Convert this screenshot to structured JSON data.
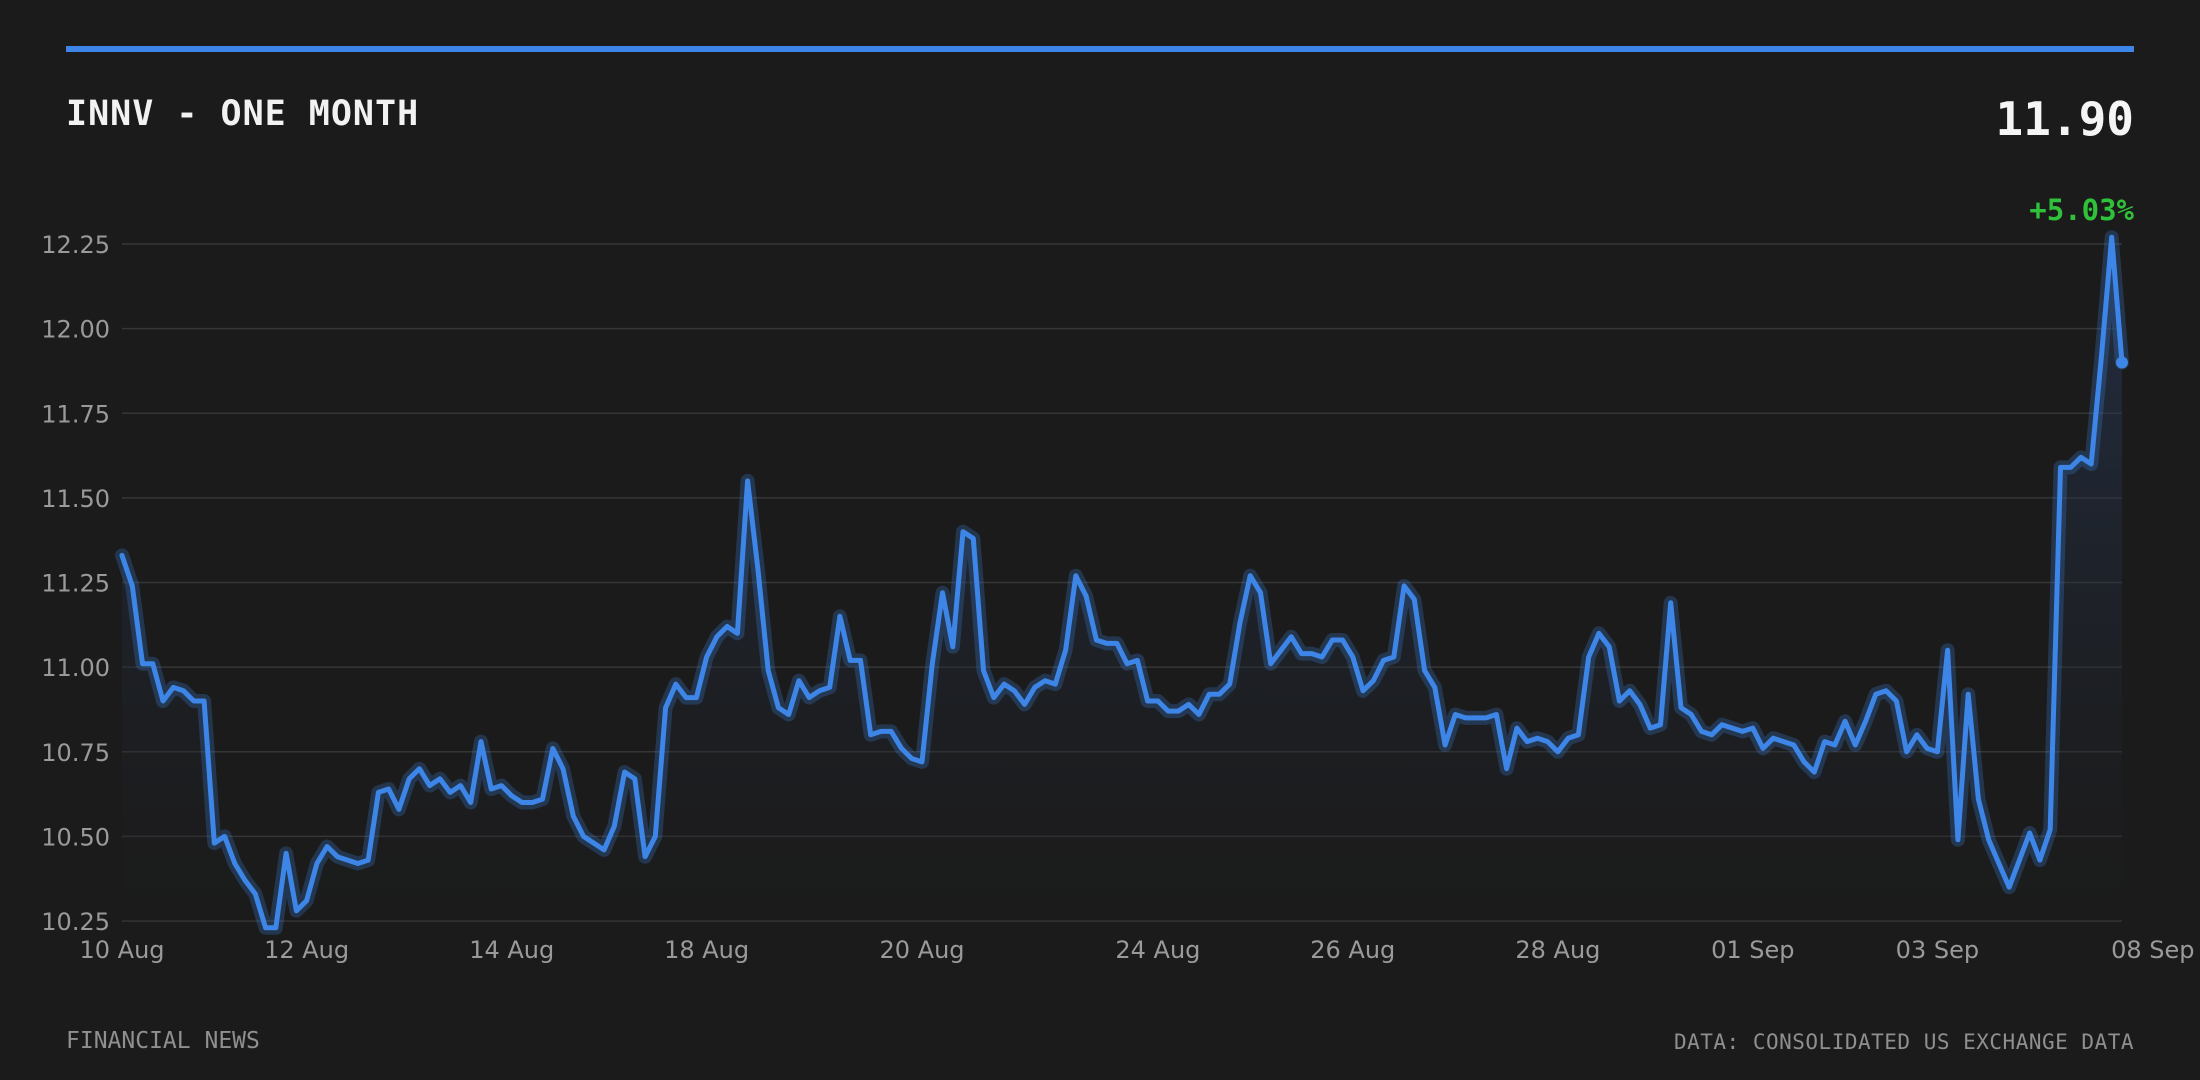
{
  "header": {
    "title": "INNV - ONE MONTH",
    "price": "11.90",
    "change": "+5.03%"
  },
  "footer": {
    "left": "FINANCIAL NEWS",
    "right": "DATA: CONSOLIDATED US EXCHANGE DATA"
  },
  "colors": {
    "accent": "#3d86e8",
    "positive": "#2fc13a",
    "grid": "#363636",
    "background": "#1b1b1b"
  },
  "chart_data": {
    "type": "line",
    "title": "INNV - ONE MONTH",
    "xlabel": "",
    "ylabel": "",
    "ylim": [
      10.25,
      12.25
    ],
    "grid": true,
    "legend": "none",
    "y_ticks": [
      "12.25",
      "12.00",
      "11.75",
      "11.50",
      "11.25",
      "11.00",
      "10.75",
      "10.50",
      "10.25"
    ],
    "x_ticks": [
      {
        "label": "10 Aug",
        "index": 0
      },
      {
        "label": "12 Aug",
        "index": 18
      },
      {
        "label": "14 Aug",
        "index": 38
      },
      {
        "label": "18 Aug",
        "index": 57
      },
      {
        "label": "20 Aug",
        "index": 78
      },
      {
        "label": "24 Aug",
        "index": 101
      },
      {
        "label": "26 Aug",
        "index": 120
      },
      {
        "label": "28 Aug",
        "index": 140
      },
      {
        "label": "01 Sep",
        "index": 159
      },
      {
        "label": "03 Sep",
        "index": 177
      },
      {
        "label": "08 Sep",
        "index": 198
      }
    ],
    "series": [
      {
        "values": [
          11.33,
          11.24,
          11.01,
          11.01,
          10.9,
          10.94,
          10.93,
          10.9,
          10.9,
          10.48,
          10.5,
          10.42,
          10.37,
          10.33,
          10.23,
          10.23,
          10.45,
          10.28,
          10.31,
          10.42,
          10.47,
          10.44,
          10.43,
          10.42,
          10.43,
          10.63,
          10.64,
          10.58,
          10.67,
          10.7,
          10.65,
          10.67,
          10.63,
          10.65,
          10.6,
          10.78,
          10.64,
          10.65,
          10.62,
          10.6,
          10.6,
          10.61,
          10.76,
          10.7,
          10.56,
          10.5,
          10.48,
          10.46,
          10.53,
          10.69,
          10.67,
          10.44,
          10.5,
          10.88,
          10.95,
          10.91,
          10.91,
          11.03,
          11.09,
          11.12,
          11.1,
          11.55,
          11.29,
          10.99,
          10.88,
          10.86,
          10.96,
          10.91,
          10.93,
          10.94,
          11.15,
          11.02,
          11.02,
          10.8,
          10.81,
          10.81,
          10.76,
          10.73,
          10.72,
          11.01,
          11.22,
          11.06,
          11.4,
          11.38,
          10.99,
          10.91,
          10.95,
          10.93,
          10.89,
          10.94,
          10.96,
          10.95,
          11.05,
          11.27,
          11.21,
          11.08,
          11.07,
          11.07,
          11.01,
          11.02,
          10.9,
          10.9,
          10.87,
          10.87,
          10.89,
          10.86,
          10.92,
          10.92,
          10.95,
          11.13,
          11.27,
          11.22,
          11.01,
          11.05,
          11.09,
          11.04,
          11.04,
          11.03,
          11.08,
          11.08,
          11.03,
          10.93,
          10.96,
          11.02,
          11.03,
          11.24,
          11.2,
          10.99,
          10.94,
          10.77,
          10.86,
          10.85,
          10.85,
          10.85,
          10.86,
          10.7,
          10.82,
          10.78,
          10.79,
          10.78,
          10.75,
          10.79,
          10.8,
          11.03,
          11.1,
          11.06,
          10.9,
          10.93,
          10.89,
          10.82,
          10.83,
          11.19,
          10.88,
          10.86,
          10.81,
          10.8,
          10.83,
          10.82,
          10.81,
          10.82,
          10.76,
          10.79,
          10.78,
          10.77,
          10.72,
          10.69,
          10.78,
          10.77,
          10.84,
          10.77,
          10.84,
          10.92,
          10.93,
          10.9,
          10.75,
          10.8,
          10.76,
          10.75,
          11.05,
          10.49,
          10.92,
          10.61,
          10.49,
          10.42,
          10.35,
          10.43,
          10.51,
          10.43,
          10.52,
          11.59,
          11.59,
          11.62,
          11.6,
          11.92,
          12.27,
          11.9
        ]
      }
    ]
  }
}
